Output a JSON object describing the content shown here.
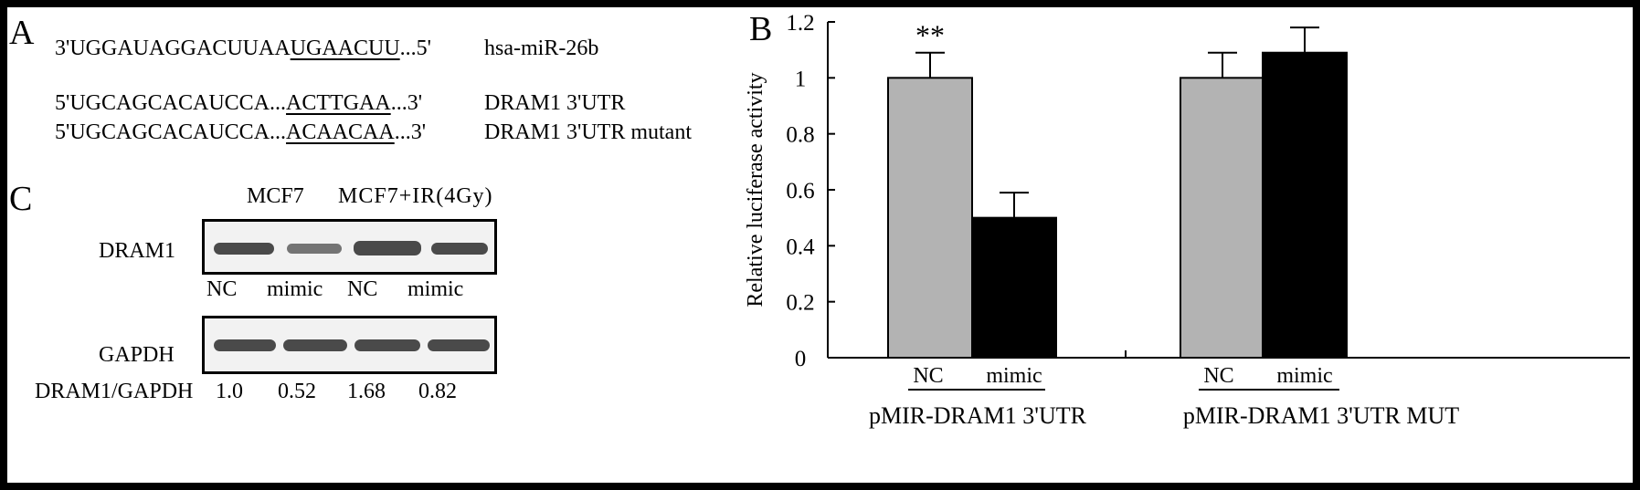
{
  "panel_a": {
    "letter": "A",
    "mir": {
      "pre": "3'UGGAUAGGACUUAA",
      "seed": "UGAACUU",
      "post": "...5'",
      "name": "hsa-miR-26b"
    },
    "wt": {
      "pre": "5'UGCAGCACAUCCA...",
      "seed": "ACTTGAA",
      "post": "...3'",
      "name": "DRAM1 3'UTR"
    },
    "mut": {
      "pre": "5'UGCAGCACAUCCA...",
      "seed": "ACAACAA",
      "post": "...3'",
      "name": "DRAM1 3'UTR mutant"
    }
  },
  "panel_c": {
    "letter": "C",
    "group_labels": [
      "MCF7",
      "MCF7+IR(4Gy)"
    ],
    "row1_label": "DRAM1",
    "row2_label": "GAPDH",
    "lane_labels": [
      "NC",
      "mimic",
      "NC",
      "mimic"
    ],
    "ratio_label": "DRAM1/GAPDH",
    "ratios": [
      "1.0",
      "0.52",
      "1.68",
      "0.82"
    ]
  },
  "chart_data": {
    "type": "bar",
    "panel_letter": "B",
    "ylabel": "Relative luciferase activity",
    "ylim": [
      0,
      1.2
    ],
    "yticks": [
      "0",
      "0.2",
      "0.4",
      "0.6",
      "0.8",
      "1",
      "1.2"
    ],
    "group_names": [
      "pMIR-DRAM1 3'UTR",
      "pMIR-DRAM1 3'UTR MUT"
    ],
    "categories": [
      "NC",
      "mimic",
      "NC",
      "mimic"
    ],
    "values": [
      1.0,
      0.5,
      1.0,
      1.09
    ],
    "errors": [
      0.09,
      0.09,
      0.09,
      0.09
    ],
    "colors": [
      "#b3b3b3",
      "#000000",
      "#b3b3b3",
      "#000000"
    ],
    "annotations": [
      "**",
      "",
      "",
      ""
    ]
  }
}
